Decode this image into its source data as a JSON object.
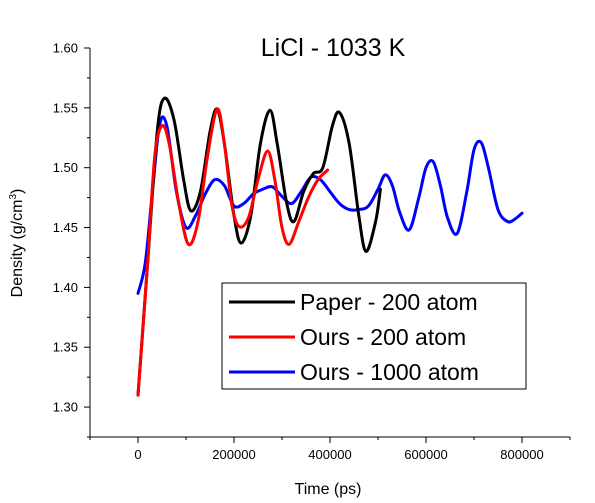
{
  "chart_data": {
    "type": "line",
    "title": "LiCl - 1033 K",
    "xlabel": "Time (ps)",
    "ylabel": "Density (g/cm³)",
    "xlim": [
      -100000,
      900000
    ],
    "ylim": [
      1.275,
      1.6
    ],
    "x_ticks": [
      0,
      200000,
      400000,
      600000,
      800000
    ],
    "x_tick_labels": [
      "0",
      "200000",
      "400000",
      "600000",
      "800000"
    ],
    "y_ticks": [
      1.3,
      1.35,
      1.4,
      1.45,
      1.5,
      1.55,
      1.6
    ],
    "y_tick_labels": [
      "1.30",
      "1.35",
      "1.40",
      "1.45",
      "1.50",
      "1.55",
      "1.60"
    ],
    "grid": false,
    "legend_position": "bottom-right",
    "series": [
      {
        "name": "Paper - 200 atom",
        "color": "#000000",
        "x": [
          0,
          20000,
          40000,
          55000,
          75000,
          95000,
          110000,
          130000,
          150000,
          165000,
          180000,
          200000,
          215000,
          235000,
          255000,
          275000,
          290000,
          310000,
          325000,
          345000,
          365000,
          385000,
          405000,
          420000,
          440000,
          460000,
          475000,
          495000,
          505000
        ],
        "y": [
          1.31,
          1.42,
          1.53,
          1.558,
          1.54,
          1.49,
          1.464,
          1.48,
          1.53,
          1.549,
          1.52,
          1.46,
          1.437,
          1.46,
          1.52,
          1.548,
          1.52,
          1.47,
          1.455,
          1.48,
          1.495,
          1.5,
          1.535,
          1.546,
          1.52,
          1.46,
          1.43,
          1.455,
          1.482
        ]
      },
      {
        "name": "Ours - 200 atom",
        "color": "#ff0000",
        "x": [
          0,
          20000,
          35000,
          50000,
          65000,
          85000,
          105000,
          125000,
          145000,
          165000,
          180000,
          195000,
          210000,
          230000,
          250000,
          270000,
          285000,
          300000,
          315000,
          335000,
          355000,
          375000,
          395000
        ],
        "y": [
          1.31,
          1.42,
          1.51,
          1.535,
          1.52,
          1.47,
          1.436,
          1.455,
          1.51,
          1.549,
          1.52,
          1.47,
          1.451,
          1.458,
          1.49,
          1.514,
          1.49,
          1.45,
          1.436,
          1.455,
          1.475,
          1.49,
          1.498
        ]
      },
      {
        "name": "Ours - 1000 atom",
        "color": "#0000ff",
        "x": [
          0,
          15000,
          30000,
          45000,
          60000,
          80000,
          100000,
          120000,
          140000,
          160000,
          180000,
          200000,
          220000,
          240000,
          260000,
          280000,
          300000,
          320000,
          340000,
          360000,
          380000,
          400000,
          420000,
          440000,
          460000,
          480000,
          500000,
          515000,
          530000,
          545000,
          565000,
          585000,
          600000,
          615000,
          630000,
          645000,
          665000,
          685000,
          700000,
          715000,
          730000,
          750000,
          770000,
          785000,
          800000
        ],
        "y": [
          1.395,
          1.42,
          1.48,
          1.536,
          1.535,
          1.48,
          1.45,
          1.46,
          1.478,
          1.49,
          1.485,
          1.468,
          1.47,
          1.478,
          1.482,
          1.484,
          1.476,
          1.47,
          1.48,
          1.492,
          1.49,
          1.48,
          1.47,
          1.465,
          1.465,
          1.468,
          1.482,
          1.494,
          1.485,
          1.463,
          1.448,
          1.475,
          1.5,
          1.505,
          1.485,
          1.458,
          1.445,
          1.48,
          1.515,
          1.521,
          1.5,
          1.465,
          1.455,
          1.457,
          1.462
        ]
      }
    ]
  }
}
